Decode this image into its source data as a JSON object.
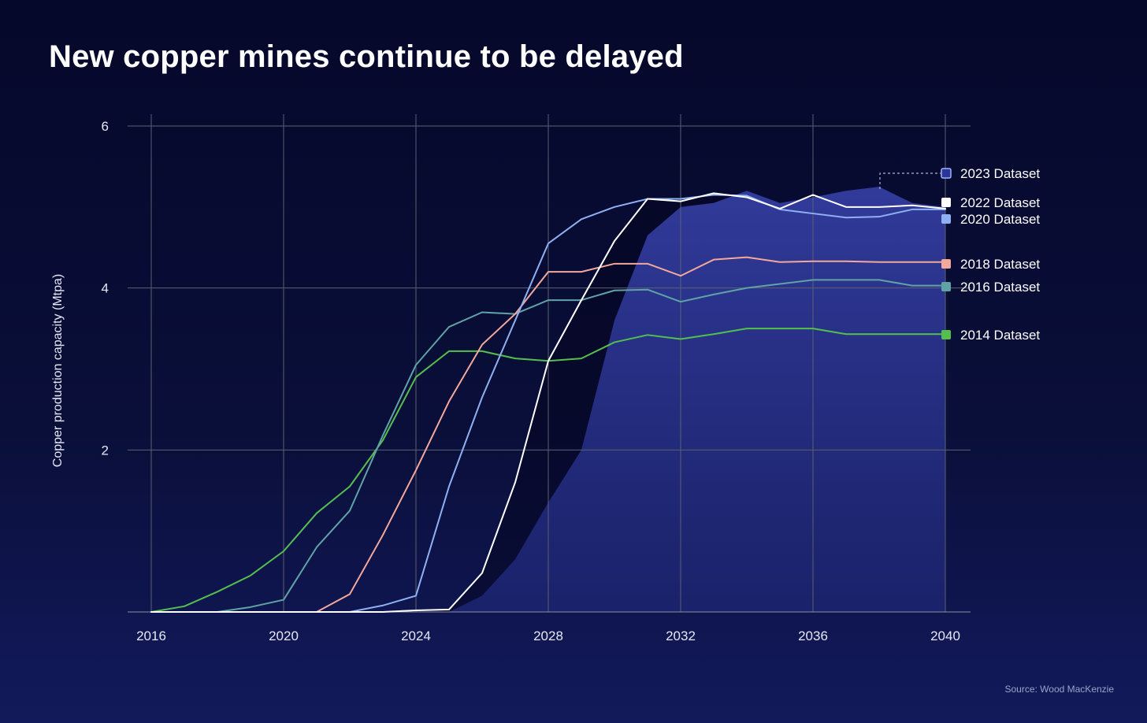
{
  "title": "New copper mines continue to be delayed",
  "source": "Source: Wood MacKenzie",
  "chart_data": {
    "type": "line",
    "ylabel": "Copper production capacity (Mtpa)",
    "xlim": [
      2016,
      2040
    ],
    "ylim": [
      0,
      6
    ],
    "x_ticks": [
      "2016",
      "2020",
      "2024",
      "2028",
      "2032",
      "2036",
      "2040"
    ],
    "y_ticks": [
      "2",
      "4",
      "6"
    ],
    "grid": true,
    "x": [
      2016,
      2017,
      2018,
      2019,
      2020,
      2021,
      2022,
      2023,
      2024,
      2025,
      2026,
      2027,
      2028,
      2029,
      2030,
      2031,
      2032,
      2033,
      2034,
      2035,
      2036,
      2037,
      2038,
      2039,
      2040
    ],
    "series": [
      {
        "name": "2023 Dataset",
        "kind": "area",
        "color": "#2d3596",
        "values": [
          0,
          0,
          0,
          0,
          0,
          0,
          0,
          0,
          0,
          0,
          0.2,
          0.65,
          1.35,
          2.0,
          3.6,
          4.65,
          5.0,
          5.05,
          5.2,
          5.05,
          5.12,
          5.2,
          5.25,
          5.05,
          5.0
        ]
      },
      {
        "name": "2022 Dataset",
        "color": "#ffffff",
        "values": [
          0,
          0,
          0,
          0,
          0,
          0,
          0,
          0,
          0.02,
          0.03,
          0.48,
          1.6,
          3.1,
          3.85,
          4.58,
          5.1,
          5.07,
          5.17,
          5.12,
          4.98,
          5.15,
          5.0,
          5.0,
          5.02,
          4.98
        ]
      },
      {
        "name": "2020 Dataset",
        "color": "#8fb0f2",
        "values": [
          0,
          0,
          0,
          0,
          0,
          0,
          0,
          0.08,
          0.2,
          1.55,
          2.65,
          3.6,
          4.55,
          4.85,
          5.0,
          5.1,
          5.1,
          5.15,
          5.14,
          4.97,
          4.92,
          4.87,
          4.88,
          4.97,
          4.97
        ]
      },
      {
        "name": "2018 Dataset",
        "color": "#f3a89c",
        "values": [
          0,
          0,
          0,
          0,
          0,
          0,
          0.22,
          0.95,
          1.75,
          2.6,
          3.3,
          3.68,
          4.2,
          4.2,
          4.3,
          4.3,
          4.15,
          4.35,
          4.38,
          4.32,
          4.33,
          4.33,
          4.32,
          4.32,
          4.32
        ]
      },
      {
        "name": "2016 Dataset",
        "color": "#5fa3a6",
        "values": [
          0,
          0,
          0,
          0.06,
          0.15,
          0.8,
          1.25,
          2.18,
          3.05,
          3.52,
          3.7,
          3.68,
          3.85,
          3.85,
          3.97,
          3.98,
          3.83,
          3.92,
          4.0,
          4.05,
          4.1,
          4.1,
          4.1,
          4.03,
          4.03
        ]
      },
      {
        "name": "2014 Dataset",
        "color": "#55bf4e",
        "values": [
          0,
          0.07,
          0.25,
          0.45,
          0.75,
          1.22,
          1.55,
          2.12,
          2.9,
          3.22,
          3.22,
          3.13,
          3.1,
          3.13,
          3.33,
          3.42,
          3.37,
          3.43,
          3.5,
          3.5,
          3.5,
          3.43,
          3.43,
          3.43,
          3.43
        ]
      }
    ]
  }
}
